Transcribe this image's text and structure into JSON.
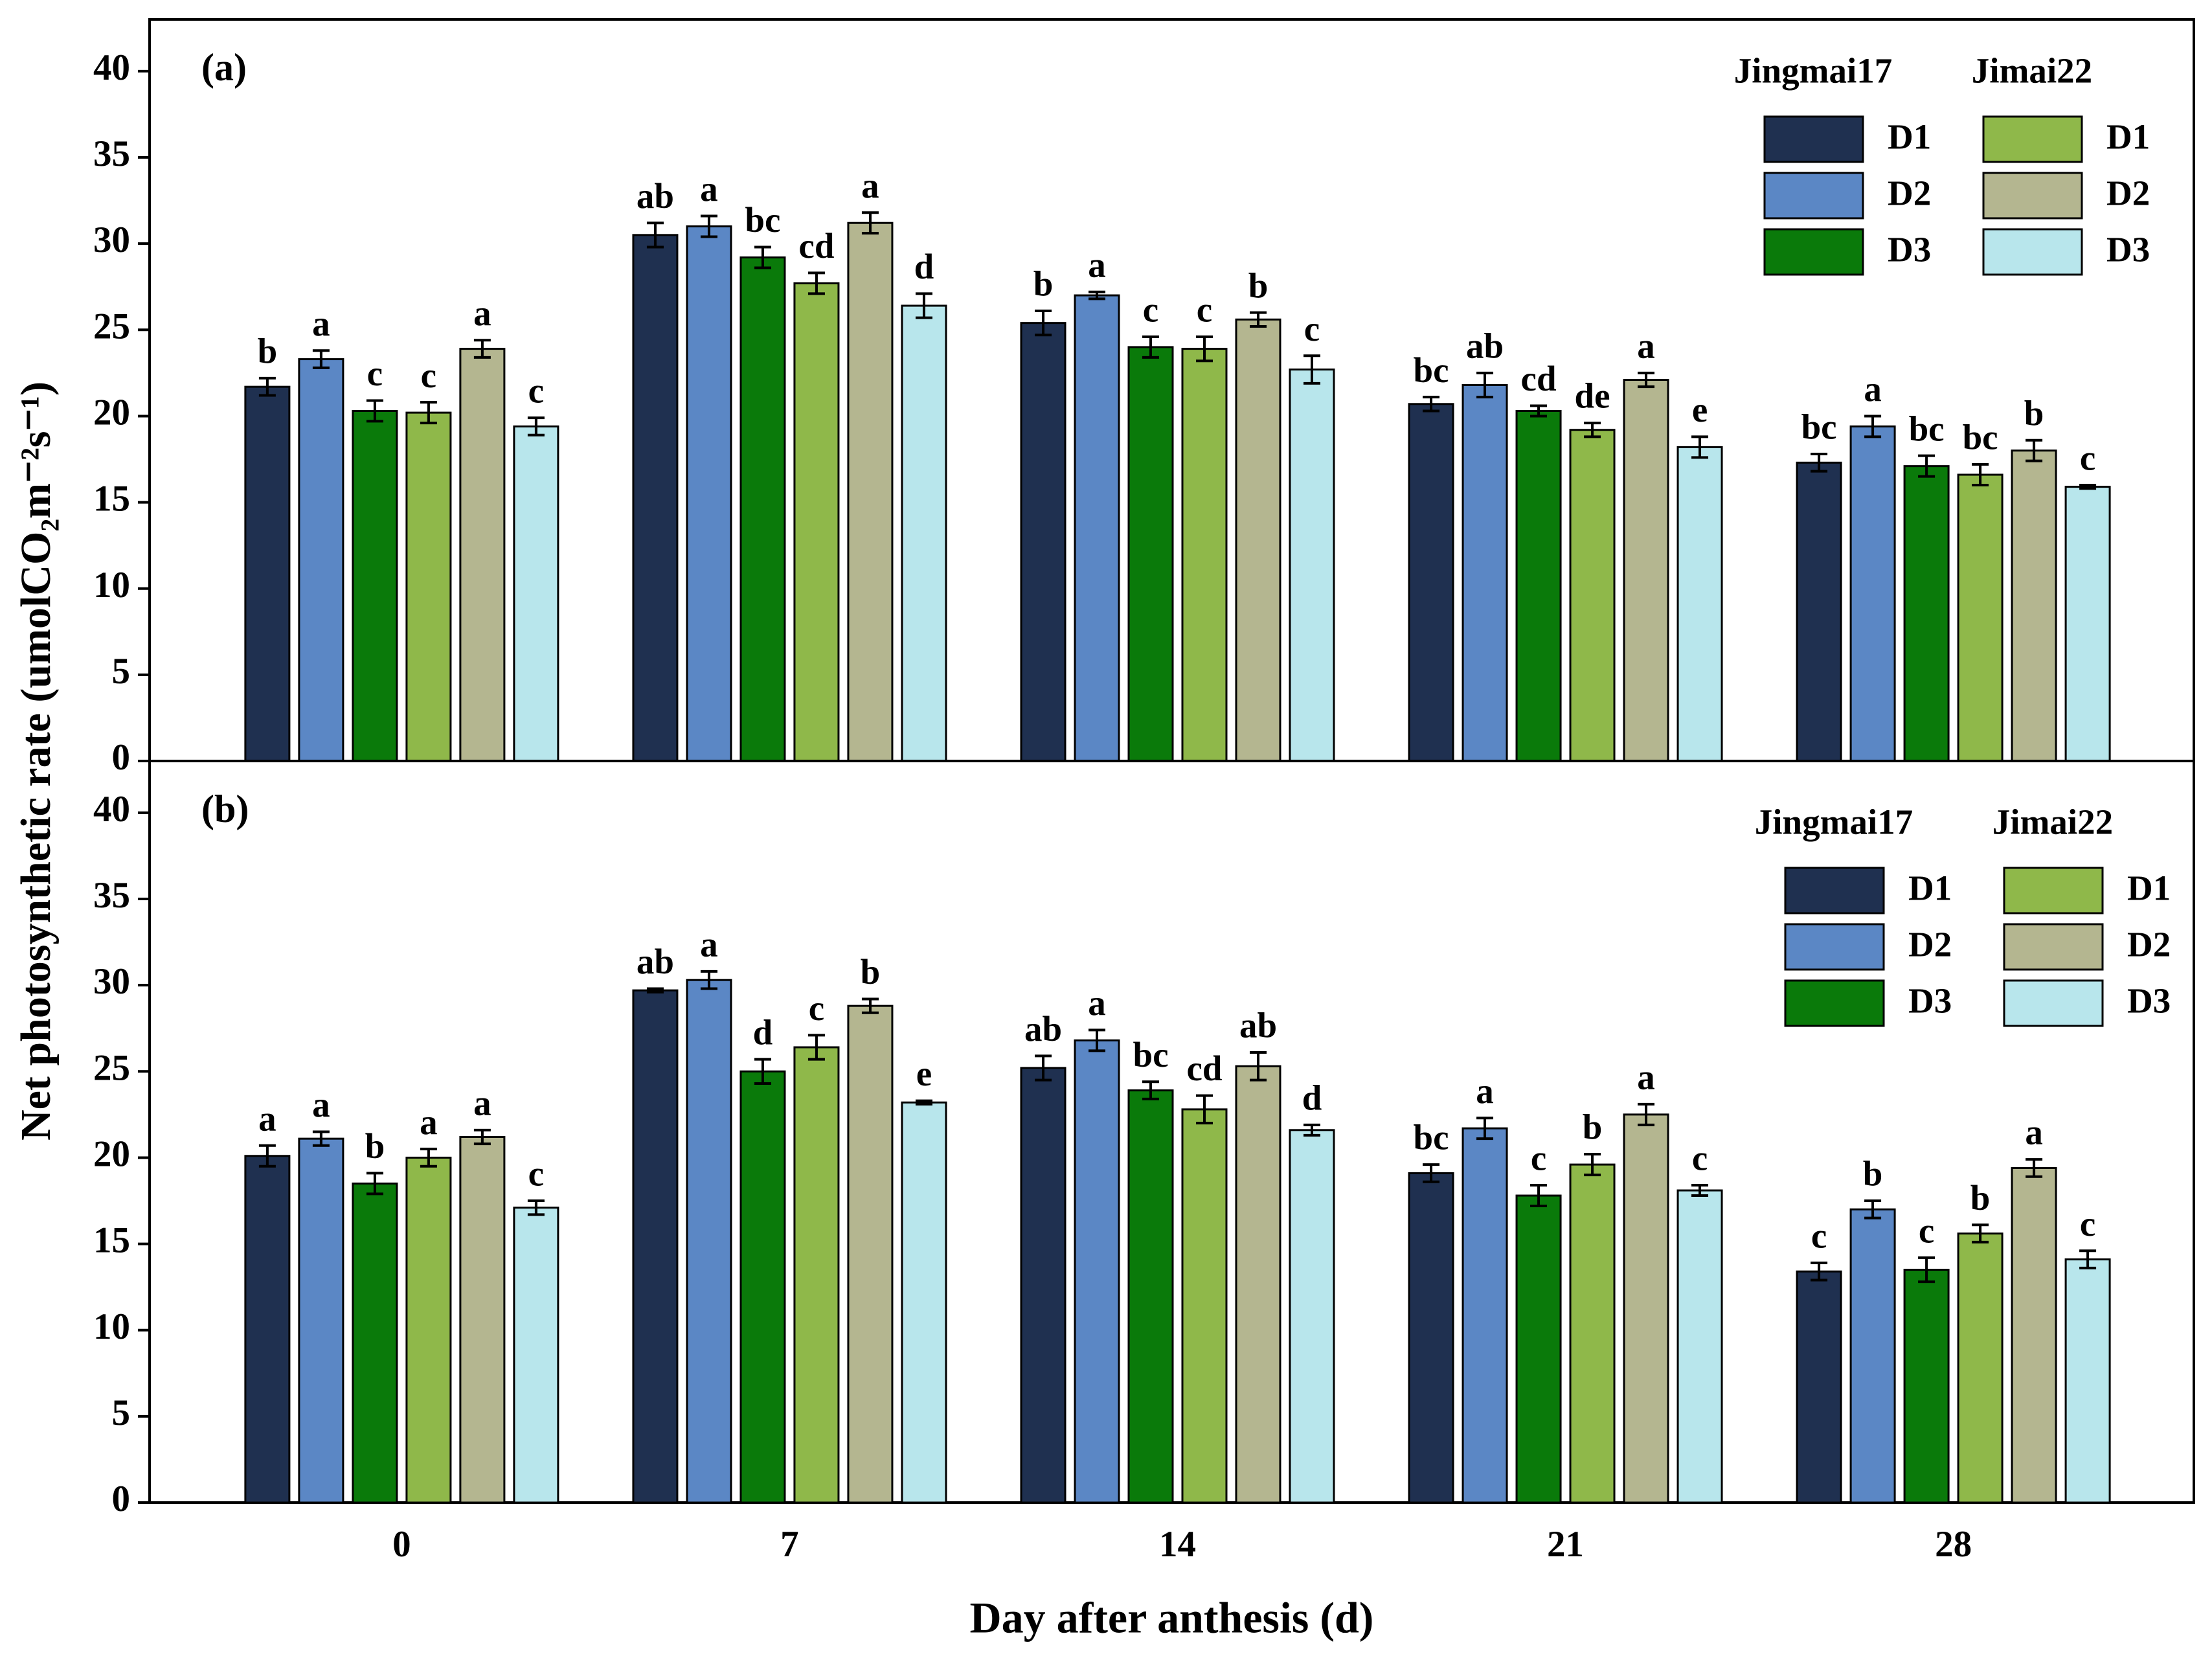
{
  "chart_data": [
    {
      "type": "bar",
      "panel": "(a)",
      "ylabel": "Net photosynthetic rate (umolCO₂m⁻²s⁻¹)",
      "categories": [
        "0",
        "7",
        "14",
        "21",
        "28"
      ],
      "ylim": [
        0,
        43
      ],
      "yticks": [
        0,
        5,
        10,
        15,
        20,
        25,
        30,
        35,
        40
      ],
      "series": [
        {
          "name": "D1",
          "variety": "Jingmai17",
          "color": "#1f3050",
          "values": [
            21.7,
            30.5,
            25.4,
            20.7,
            17.3
          ],
          "errors": [
            0.5,
            0.7,
            0.7,
            0.4,
            0.5
          ],
          "letters": [
            "b",
            "ab",
            "b",
            "bc",
            "bc"
          ]
        },
        {
          "name": "D2",
          "variety": "Jingmai17",
          "color": "#5b87c5",
          "values": [
            23.3,
            31.0,
            27.0,
            21.8,
            19.4
          ],
          "errors": [
            0.5,
            0.6,
            0.2,
            0.7,
            0.6
          ],
          "letters": [
            "a",
            "a",
            "a",
            "ab",
            "a"
          ]
        },
        {
          "name": "D3",
          "variety": "Jingmai17",
          "color": "#0a7a0a",
          "values": [
            20.3,
            29.2,
            24.0,
            20.3,
            17.1
          ],
          "errors": [
            0.6,
            0.6,
            0.6,
            0.3,
            0.6
          ],
          "letters": [
            "c",
            "bc",
            "c",
            "cd",
            "bc"
          ]
        },
        {
          "name": "D1",
          "variety": "Jimai22",
          "color": "#8fb84a",
          "values": [
            20.2,
            27.7,
            23.9,
            19.2,
            16.6
          ],
          "errors": [
            0.6,
            0.6,
            0.7,
            0.4,
            0.6
          ],
          "letters": [
            "c",
            "cd",
            "c",
            "de",
            "bc"
          ]
        },
        {
          "name": "D2",
          "variety": "Jimai22",
          "color": "#b4b690",
          "values": [
            23.9,
            31.2,
            25.6,
            22.1,
            18.0
          ],
          "errors": [
            0.5,
            0.6,
            0.4,
            0.4,
            0.6
          ],
          "letters": [
            "a",
            "a",
            "b",
            "a",
            "b"
          ]
        },
        {
          "name": "D3",
          "variety": "Jimai22",
          "color": "#b8e6ec",
          "values": [
            19.4,
            26.4,
            22.7,
            18.2,
            15.9
          ],
          "errors": [
            0.5,
            0.7,
            0.8,
            0.6,
            0.1
          ],
          "letters": [
            "c",
            "d",
            "c",
            "e",
            "c"
          ]
        }
      ]
    },
    {
      "type": "bar",
      "panel": "(b)",
      "xlabel": "Day after anthesis (d)",
      "categories": [
        "0",
        "7",
        "14",
        "21",
        "28"
      ],
      "ylim": [
        0,
        43
      ],
      "yticks": [
        0,
        5,
        10,
        15,
        20,
        25,
        30,
        35,
        40
      ],
      "series": [
        {
          "name": "D1",
          "variety": "Jingmai17",
          "color": "#1f3050",
          "values": [
            20.1,
            29.7,
            25.2,
            19.1,
            13.4
          ],
          "errors": [
            0.6,
            0.1,
            0.7,
            0.5,
            0.5
          ],
          "letters": [
            "a",
            "ab",
            "ab",
            "bc",
            "c"
          ]
        },
        {
          "name": "D2",
          "variety": "Jingmai17",
          "color": "#5b87c5",
          "values": [
            21.1,
            30.3,
            26.8,
            21.7,
            17.0
          ],
          "errors": [
            0.4,
            0.5,
            0.6,
            0.6,
            0.5
          ],
          "letters": [
            "a",
            "a",
            "a",
            "a",
            "b"
          ]
        },
        {
          "name": "D3",
          "variety": "Jingmai17",
          "color": "#0a7a0a",
          "values": [
            18.5,
            25.0,
            23.9,
            17.8,
            13.5
          ],
          "errors": [
            0.6,
            0.7,
            0.5,
            0.6,
            0.7
          ],
          "letters": [
            "b",
            "d",
            "bc",
            "c",
            "c"
          ]
        },
        {
          "name": "D1",
          "variety": "Jimai22",
          "color": "#8fb84a",
          "values": [
            20.0,
            26.4,
            22.8,
            19.6,
            15.6
          ],
          "errors": [
            0.5,
            0.7,
            0.8,
            0.6,
            0.5
          ],
          "letters": [
            "a",
            "c",
            "cd",
            "b",
            "b"
          ]
        },
        {
          "name": "D2",
          "variety": "Jimai22",
          "color": "#b4b690",
          "values": [
            21.2,
            28.8,
            25.3,
            22.5,
            19.4
          ],
          "errors": [
            0.4,
            0.4,
            0.8,
            0.6,
            0.5
          ],
          "letters": [
            "a",
            "b",
            "ab",
            "a",
            "a"
          ]
        },
        {
          "name": "D3",
          "variety": "Jimai22",
          "color": "#b8e6ec",
          "values": [
            17.1,
            23.2,
            21.6,
            18.1,
            14.1
          ],
          "errors": [
            0.4,
            0.1,
            0.3,
            0.3,
            0.5
          ],
          "letters": [
            "c",
            "e",
            "d",
            "c",
            "c"
          ]
        }
      ]
    }
  ]
}
